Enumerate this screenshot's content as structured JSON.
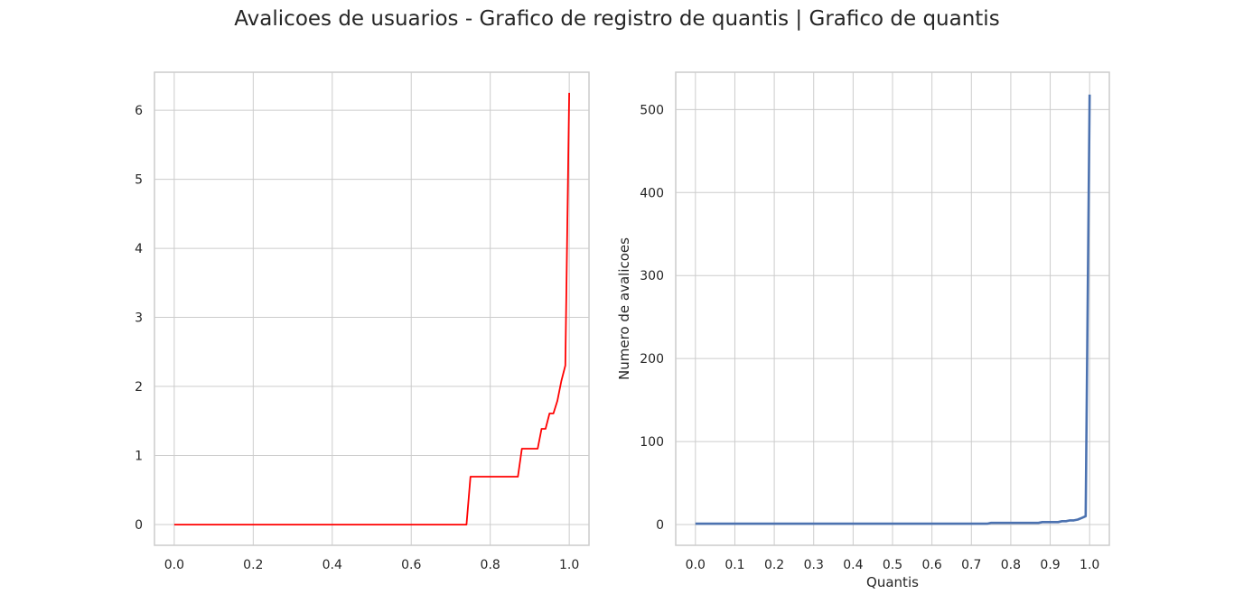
{
  "suptitle": "Avalicoes de usuarios - Grafico de registro de quantis | Grafico de quantis",
  "colors": {
    "left_line": "#ff0000",
    "right_line": "#4c72b0",
    "grid": "#cccccc",
    "frame": "#cccccc"
  },
  "chart_data": [
    {
      "type": "line",
      "title": "",
      "xlabel": "",
      "ylabel": "",
      "xlim": [
        -0.05,
        1.05
      ],
      "ylim": [
        -0.3,
        6.55
      ],
      "xticks": [
        0.0,
        0.2,
        0.4,
        0.6,
        0.8,
        1.0
      ],
      "xtick_labels": [
        "0.0",
        "0.2",
        "0.4",
        "0.6",
        "0.8",
        "1.0"
      ],
      "yticks": [
        0,
        1,
        2,
        3,
        4,
        5,
        6
      ],
      "ytick_labels": [
        "0",
        "1",
        "2",
        "3",
        "4",
        "5",
        "6"
      ],
      "grid": true,
      "series": [
        {
          "color": "#ff0000",
          "x": [
            0.0,
            0.74,
            0.75,
            0.87,
            0.88,
            0.92,
            0.93,
            0.94,
            0.95,
            0.96,
            0.97,
            0.98,
            0.99,
            1.0
          ],
          "y": [
            0.0,
            0.0,
            0.693,
            0.693,
            1.099,
            1.099,
            1.386,
            1.386,
            1.609,
            1.609,
            1.792,
            2.079,
            2.303,
            6.25
          ]
        }
      ]
    },
    {
      "type": "line",
      "title": "",
      "xlabel": "Quantis",
      "ylabel": "Numero de avalicoes",
      "xlim": [
        -0.05,
        1.05
      ],
      "ylim": [
        -25,
        545
      ],
      "xticks": [
        0.0,
        0.1,
        0.2,
        0.3,
        0.4,
        0.5,
        0.6,
        0.7,
        0.8,
        0.9,
        1.0
      ],
      "xtick_labels": [
        "0.0",
        "0.1",
        "0.2",
        "0.3",
        "0.4",
        "0.5",
        "0.6",
        "0.7",
        "0.8",
        "0.9",
        "1.0"
      ],
      "yticks": [
        0,
        100,
        200,
        300,
        400,
        500
      ],
      "ytick_labels": [
        "0",
        "100",
        "200",
        "300",
        "400",
        "500"
      ],
      "grid": true,
      "series": [
        {
          "color": "#4c72b0",
          "x": [
            0.0,
            0.74,
            0.75,
            0.87,
            0.88,
            0.92,
            0.93,
            0.94,
            0.95,
            0.96,
            0.97,
            0.98,
            0.99,
            1.0
          ],
          "y": [
            1,
            1,
            2,
            2,
            3,
            3,
            4,
            4,
            5,
            5,
            6,
            8,
            10,
            518
          ]
        }
      ]
    }
  ]
}
